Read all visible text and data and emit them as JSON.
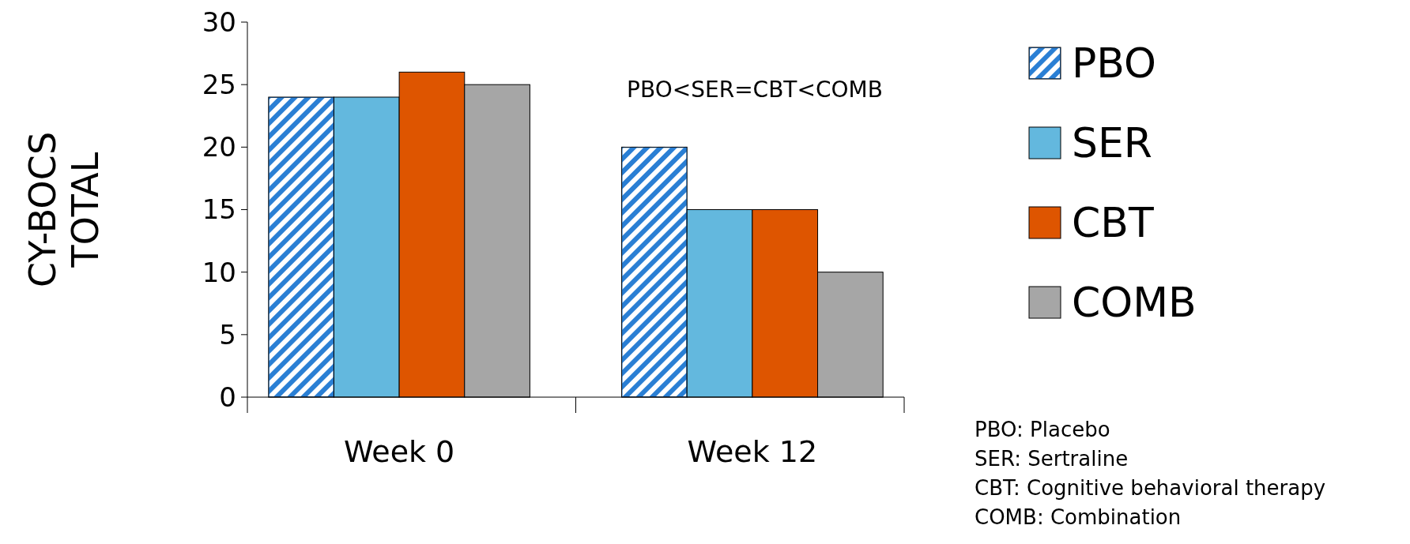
{
  "chart_data": {
    "type": "bar",
    "ylabel": "CY-BOCS TOTAL",
    "categories": [
      "Week 0",
      "Week 12"
    ],
    "series": [
      {
        "name": "PBO",
        "color": "#2a7fd4",
        "values": [
          24,
          20
        ]
      },
      {
        "name": "SER",
        "color": "#63b8de",
        "values": [
          24,
          15
        ]
      },
      {
        "name": "CBT",
        "color": "#de5500",
        "values": [
          26,
          15
        ]
      },
      {
        "name": "COMB",
        "color": "#a6a6a6",
        "values": [
          25,
          10
        ]
      }
    ],
    "ylim": [
      0,
      30
    ],
    "yticks": [
      0,
      5,
      10,
      15,
      20,
      25,
      30
    ],
    "grid": false,
    "legend": "right",
    "annotations": [
      "PBO<SER=CBT<COMB",
      "PBO: Placebo",
      "SER: Sertraline",
      "CBT: Cognitive behavioral therapy",
      "COMB: Combination"
    ]
  }
}
